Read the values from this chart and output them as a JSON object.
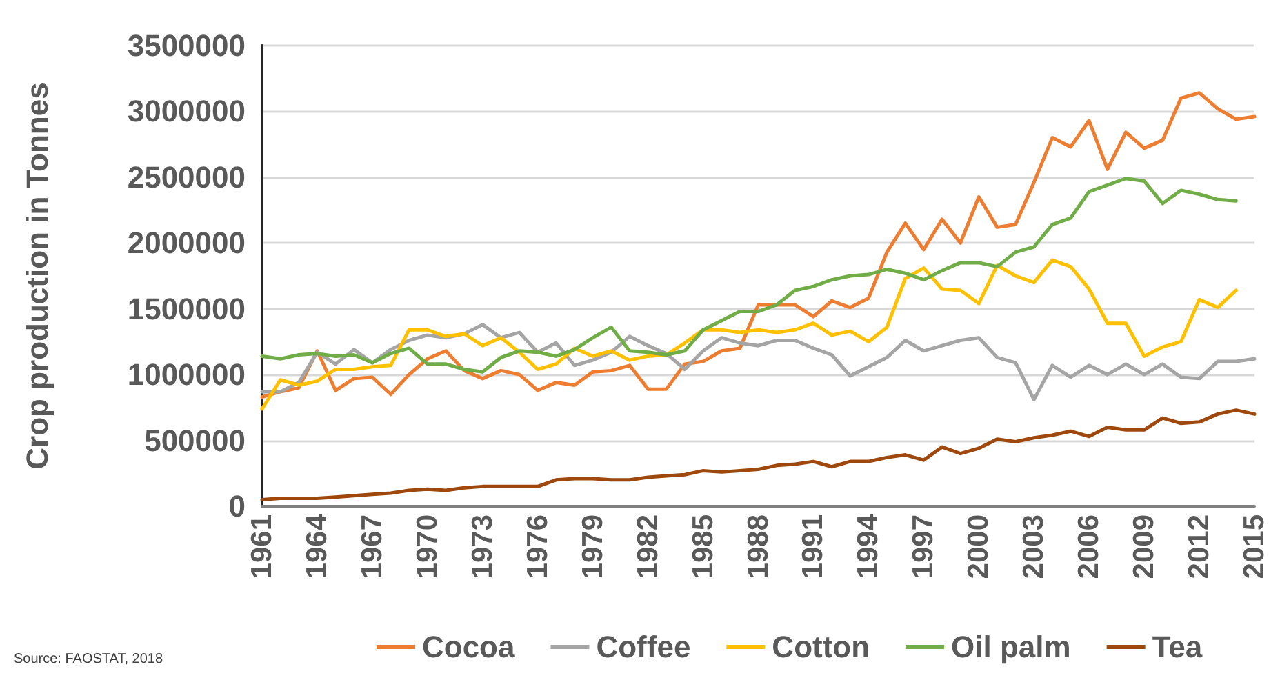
{
  "chart_data": {
    "type": "line",
    "ylabel": "Crop production in Tonnes",
    "categories": [
      "1961",
      null,
      null,
      "1964",
      null,
      null,
      "1967",
      null,
      null,
      "1970",
      null,
      null,
      "1973",
      null,
      null,
      "1976",
      null,
      null,
      "1979",
      null,
      null,
      "1982",
      null,
      null,
      "1985",
      null,
      null,
      "1988",
      null,
      null,
      "1991",
      null,
      null,
      "1994",
      null,
      null,
      "1997",
      null,
      null,
      "2000",
      null,
      null,
      "2003",
      null,
      null,
      "2006",
      null,
      null,
      "2009",
      null,
      null,
      "2012",
      null,
      null,
      "2015"
    ],
    "series": [
      {
        "name": "Cocoa",
        "color": "#ed7d31",
        "values": [
          830000,
          870000,
          900000,
          1180000,
          880000,
          970000,
          980000,
          850000,
          1000000,
          1120000,
          1180000,
          1030000,
          970000,
          1030000,
          1000000,
          880000,
          940000,
          920000,
          1020000,
          1030000,
          1070000,
          890000,
          890000,
          1080000,
          1100000,
          1180000,
          1200000,
          1530000,
          1530000,
          1530000,
          1440000,
          1560000,
          1510000,
          1580000,
          1930000,
          2150000,
          1950000,
          2180000,
          2000000,
          2350000,
          2120000,
          2140000,
          2460000,
          2800000,
          2730000,
          2930000,
          2560000,
          2840000,
          2720000,
          2780000,
          3100000,
          3140000,
          3020000,
          2940000,
          2960000
        ]
      },
      {
        "name": "Coffee",
        "color": "#a5a5a5",
        "values": [
          870000,
          870000,
          940000,
          1170000,
          1080000,
          1190000,
          1090000,
          1190000,
          1260000,
          1300000,
          1280000,
          1310000,
          1380000,
          1280000,
          1320000,
          1170000,
          1240000,
          1070000,
          1110000,
          1170000,
          1290000,
          1220000,
          1160000,
          1040000,
          1180000,
          1280000,
          1240000,
          1220000,
          1260000,
          1260000,
          1200000,
          1150000,
          990000,
          1060000,
          1130000,
          1260000,
          1180000,
          1220000,
          1260000,
          1280000,
          1130000,
          1090000,
          810000,
          1070000,
          980000,
          1070000,
          1000000,
          1080000,
          1000000,
          1080000,
          980000,
          970000,
          1100000,
          1100000,
          1120000
        ]
      },
      {
        "name": "Cotton",
        "color": "#ffc000",
        "values": [
          740000,
          960000,
          920000,
          950000,
          1040000,
          1040000,
          1060000,
          1070000,
          1340000,
          1340000,
          1290000,
          1310000,
          1220000,
          1280000,
          1170000,
          1040000,
          1080000,
          1200000,
          1140000,
          1180000,
          1110000,
          1140000,
          1150000,
          1240000,
          1340000,
          1340000,
          1320000,
          1340000,
          1320000,
          1340000,
          1390000,
          1300000,
          1330000,
          1250000,
          1360000,
          1730000,
          1810000,
          1650000,
          1640000,
          1540000,
          1830000,
          1750000,
          1700000,
          1870000,
          1820000,
          1650000,
          1390000,
          1390000,
          1140000,
          1210000,
          1250000,
          1570000,
          1510000,
          1640000,
          null
        ]
      },
      {
        "name": "Oil palm",
        "color": "#70ad47",
        "values": [
          1140000,
          1120000,
          1150000,
          1160000,
          1140000,
          1150000,
          1090000,
          1160000,
          1200000,
          1080000,
          1080000,
          1040000,
          1020000,
          1130000,
          1180000,
          1170000,
          1140000,
          1190000,
          1280000,
          1360000,
          1180000,
          1170000,
          1150000,
          1180000,
          1340000,
          1410000,
          1480000,
          1480000,
          1530000,
          1640000,
          1670000,
          1720000,
          1750000,
          1760000,
          1800000,
          1770000,
          1720000,
          1790000,
          1850000,
          1850000,
          1820000,
          1930000,
          1970000,
          2140000,
          2190000,
          2390000,
          2440000,
          2490000,
          2470000,
          2300000,
          2400000,
          2370000,
          2330000,
          2320000,
          null
        ]
      },
      {
        "name": "Tea",
        "color": "#9e480e",
        "values": [
          50000,
          60000,
          60000,
          60000,
          70000,
          80000,
          90000,
          100000,
          120000,
          130000,
          120000,
          140000,
          150000,
          150000,
          150000,
          150000,
          200000,
          210000,
          210000,
          200000,
          200000,
          220000,
          230000,
          240000,
          270000,
          260000,
          270000,
          280000,
          310000,
          320000,
          340000,
          300000,
          340000,
          340000,
          370000,
          390000,
          350000,
          450000,
          400000,
          440000,
          510000,
          490000,
          520000,
          540000,
          570000,
          530000,
          600000,
          580000,
          580000,
          670000,
          630000,
          640000,
          700000,
          730000,
          700000
        ]
      }
    ],
    "ylim": [
      0,
      3500000
    ],
    "yticks": [
      0,
      500000,
      1000000,
      1500000,
      2000000,
      2500000,
      3000000,
      3500000
    ],
    "grid": "y",
    "legend": "bottom",
    "marker": "none",
    "line_style": "solid",
    "annotations": [
      "Source: FAOSTAT, 2018"
    ]
  }
}
